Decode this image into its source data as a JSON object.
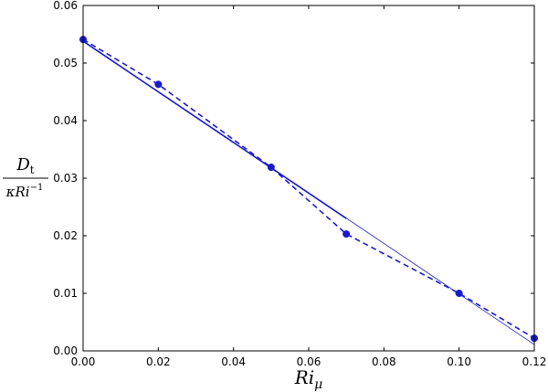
{
  "chart_data": {
    "type": "line",
    "xlabel": {
      "base": "Ri",
      "sub": "μ"
    },
    "ylabel": {
      "numerator": {
        "base": "D",
        "sub": "t"
      },
      "denominator": {
        "base": "κRi",
        "sup": "−1"
      }
    },
    "xlim": [
      0.0,
      0.12
    ],
    "ylim": [
      0.0,
      0.06
    ],
    "xticks": [
      0.0,
      0.02,
      0.04,
      0.06,
      0.08,
      0.1,
      0.12
    ],
    "xtick_labels": [
      "0.00",
      "0.02",
      "0.04",
      "0.06",
      "0.08",
      "0.10",
      "0.12"
    ],
    "yticks": [
      0.0,
      0.01,
      0.02,
      0.03,
      0.04,
      0.05,
      0.06
    ],
    "ytick_labels": [
      "0.00",
      "0.01",
      "0.02",
      "0.03",
      "0.04",
      "0.05",
      "0.06"
    ],
    "grid": false,
    "series": [
      {
        "style": "dashed-markers",
        "color": "#1a1acc",
        "x": [
          0.0,
          0.02,
          0.05,
          0.07,
          0.1,
          0.12
        ],
        "y": [
          0.0541,
          0.0463,
          0.0319,
          0.0203,
          0.01,
          0.0022
        ]
      },
      {
        "style": "solid-thick",
        "color": "#1a1acc",
        "x": [
          0.0,
          0.07
        ],
        "y": [
          0.0538,
          0.023
        ]
      },
      {
        "style": "solid-thin",
        "color": "#1a1acc",
        "x": [
          0.0,
          0.12
        ],
        "y": [
          0.0538,
          0.0011
        ]
      }
    ]
  }
}
